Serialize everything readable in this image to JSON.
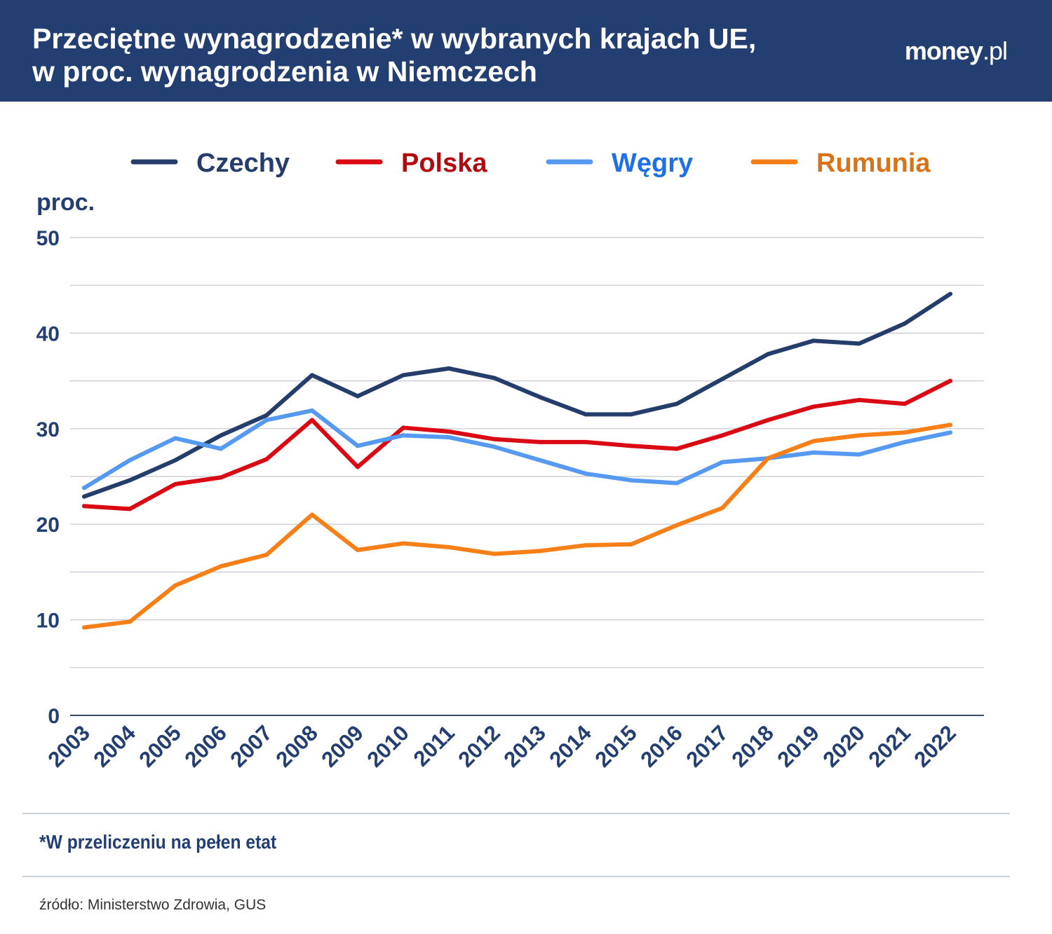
{
  "header": {
    "title_line1": "Przeciętne wynagrodzenie* w wybranych krajach UE,",
    "title_line2": "w proc. wynagrodzenia w Niemczech",
    "logo": "money.pl"
  },
  "footnote": "*W przeliczeniu na pełen etat",
  "source": "źródło: Ministerstwo Zdrowia, GUS",
  "chart_data": {
    "type": "line",
    "ylabel": "proc.",
    "ylim": [
      0,
      50
    ],
    "yticks": [
      0,
      10,
      20,
      30,
      40,
      50
    ],
    "grid": true,
    "legend_placement": "top",
    "x": [
      "2003",
      "2004",
      "2005",
      "2006",
      "2007",
      "2008",
      "2009",
      "2010",
      "2011",
      "2012",
      "2013",
      "2014",
      "2015",
      "2016",
      "2017",
      "2018",
      "2019",
      "2020",
      "2021",
      "2022"
    ],
    "series": [
      {
        "name": "Czechy",
        "color": "#253d6b",
        "label_color": "#253d6b",
        "values": [
          22.9,
          24.6,
          26.7,
          29.3,
          31.4,
          35.6,
          33.4,
          35.6,
          36.3,
          35.3,
          33.3,
          31.5,
          31.5,
          32.6,
          35.2,
          37.8,
          39.2,
          38.9,
          41.0,
          44.1
        ]
      },
      {
        "name": "Polska",
        "color": "#d90a14",
        "label_color": "#b30a10",
        "values": [
          21.9,
          21.6,
          24.2,
          24.9,
          26.8,
          30.9,
          26.0,
          30.1,
          29.7,
          28.9,
          28.6,
          28.6,
          28.2,
          27.9,
          29.3,
          30.9,
          32.3,
          33.0,
          32.6,
          35.0
        ]
      },
      {
        "name": "Węgry",
        "color": "#5599f0",
        "label_color": "#1f6fe8",
        "values": [
          23.8,
          26.7,
          29.0,
          27.9,
          30.9,
          31.9,
          28.2,
          29.3,
          29.1,
          28.1,
          26.7,
          25.3,
          24.6,
          24.3,
          26.5,
          26.9,
          27.5,
          27.3,
          28.6,
          29.6
        ]
      },
      {
        "name": "Rumunia",
        "color": "#f77f17",
        "label_color": "#d9731a",
        "values": [
          9.2,
          9.8,
          13.6,
          15.6,
          16.8,
          21.0,
          17.3,
          18.0,
          17.6,
          16.9,
          17.2,
          17.8,
          17.9,
          19.9,
          21.7,
          26.9,
          28.7,
          29.3,
          29.6,
          30.4
        ]
      }
    ]
  }
}
